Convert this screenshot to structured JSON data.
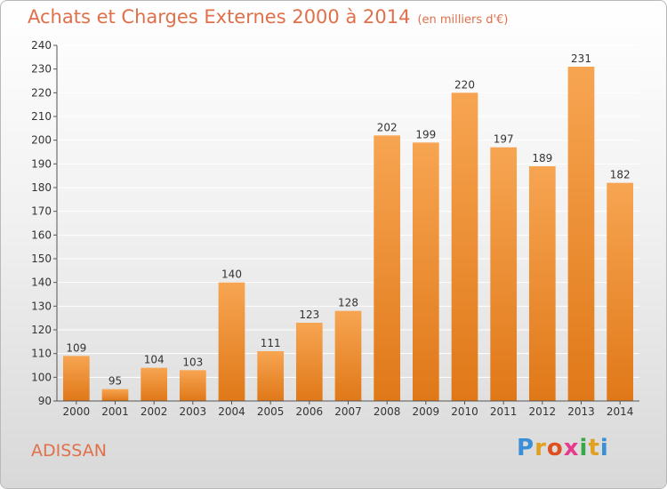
{
  "title": "Achats et Charges Externes 2000 à 2014",
  "unit_note": "(en milliers d'€)",
  "town": "ADISSAN",
  "logo": {
    "letters": [
      "P",
      "r",
      "o",
      "x",
      "i",
      "t",
      "i"
    ],
    "colors": [
      "#3a8fd6",
      "#e0a020",
      "#e0501e",
      "#e83a8a",
      "#3aa84a",
      "#e0a020",
      "#3a8fd6"
    ]
  },
  "colors": {
    "bar_light": "#f7a552",
    "bar_dark": "#e07818",
    "title": "#e0704a",
    "grid": "#ffffff"
  },
  "chart_data": {
    "type": "bar",
    "title": "Achats et Charges Externes 2000 à 2014",
    "categories": [
      "2000",
      "2001",
      "2002",
      "2003",
      "2004",
      "2005",
      "2006",
      "2007",
      "2008",
      "2009",
      "2010",
      "2011",
      "2012",
      "2013",
      "2014"
    ],
    "values": [
      109,
      95,
      104,
      103,
      140,
      111,
      123,
      128,
      202,
      199,
      220,
      197,
      189,
      231,
      182
    ],
    "ylim": [
      90,
      240
    ],
    "yticks": [
      90,
      100,
      110,
      120,
      130,
      140,
      150,
      160,
      170,
      180,
      190,
      200,
      210,
      220,
      230,
      240
    ],
    "grid": true,
    "data_labels": true
  }
}
